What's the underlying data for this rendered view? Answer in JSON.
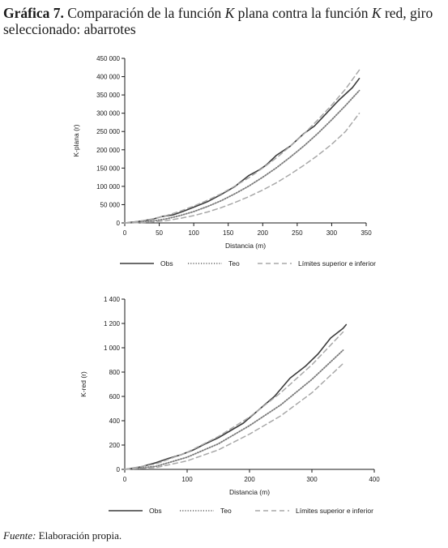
{
  "heading": {
    "label": "Gráfica 7.",
    "text_a": " Comparación de la función ",
    "k1": "K",
    "text_b": " plana contra la función ",
    "k2": "K",
    "text_c": " red, giro seleccionado: abarrotes"
  },
  "legend": {
    "obs": "Obs",
    "teo": "Teo",
    "limits": "Límites superior e inferior"
  },
  "source": {
    "label": "Fuente:",
    "text": " Elaboración propia."
  },
  "colors": {
    "obs": "#3c3c3c",
    "teo": "#7a7a7a",
    "limits": "#a8a8a8",
    "axis": "#1a1a1a"
  },
  "chart_data": [
    {
      "type": "line",
      "xlabel": "Distancia (m)",
      "ylabel": "K-plana (r)",
      "xlim": [
        0,
        350
      ],
      "ylim": [
        0,
        450000
      ],
      "xticks": [
        0,
        50,
        100,
        150,
        200,
        250,
        300,
        350
      ],
      "yticks": [
        0,
        50000,
        100000,
        150000,
        200000,
        250000,
        300000,
        350000,
        400000,
        450000
      ],
      "ytick_labels": [
        "0",
        "50 000",
        "100 000",
        "150 000",
        "200 000",
        "250 000",
        "300 000",
        "350 000",
        "400 000",
        "450 000"
      ],
      "grid": false,
      "legend_position": "bottom",
      "series": [
        {
          "name": "Obs",
          "style": "solid",
          "x": [
            0,
            20,
            40,
            55,
            70,
            85,
            100,
            120,
            140,
            160,
            180,
            195,
            205,
            220,
            240,
            260,
            275,
            290,
            310,
            330,
            340
          ],
          "y": [
            0,
            4000,
            10000,
            18000,
            22000,
            32000,
            43000,
            58000,
            78000,
            100000,
            130000,
            145000,
            158000,
            185000,
            210000,
            245000,
            265000,
            295000,
            335000,
            370000,
            395000
          ]
        },
        {
          "name": "Teo",
          "style": "dotted",
          "x": [
            0,
            20,
            40,
            60,
            80,
            100,
            120,
            140,
            160,
            180,
            200,
            220,
            240,
            260,
            280,
            300,
            320,
            340
          ],
          "y": [
            0,
            1200,
            5000,
            11000,
            20000,
            31000,
            45000,
            61000,
            80000,
            101000,
            125000,
            151000,
            180000,
            211000,
            245000,
            282000,
            321000,
            362000
          ]
        },
        {
          "name": "Superior",
          "style": "dashed",
          "x": [
            0,
            20,
            40,
            60,
            80,
            100,
            120,
            140,
            160,
            180,
            200,
            220,
            240,
            260,
            280,
            300,
            320,
            340
          ],
          "y": [
            0,
            4000,
            11000,
            20000,
            32000,
            46000,
            62000,
            80000,
            101000,
            124000,
            150000,
            178000,
            210000,
            244000,
            282000,
            322000,
            366000,
            418000
          ]
        },
        {
          "name": "Inferior",
          "style": "dashed",
          "x": [
            0,
            20,
            40,
            60,
            80,
            100,
            120,
            140,
            160,
            180,
            200,
            220,
            240,
            260,
            280,
            300,
            320,
            340
          ],
          "y": [
            0,
            500,
            2500,
            6500,
            12500,
            20000,
            30000,
            42000,
            56000,
            72000,
            90000,
            110000,
            133000,
            158000,
            185000,
            215000,
            250000,
            300000
          ]
        }
      ]
    },
    {
      "type": "line",
      "xlabel": "Distancia (m)",
      "ylabel": "K-red (r)",
      "xlim": [
        0,
        400
      ],
      "ylim": [
        0,
        1400
      ],
      "xticks": [
        0,
        100,
        200,
        300,
        400
      ],
      "yticks": [
        0,
        200,
        400,
        600,
        800,
        1000,
        1200,
        1400
      ],
      "ytick_labels": [
        "0",
        "200",
        "400",
        "600",
        "800",
        "1 000",
        "1 200",
        "1 400"
      ],
      "grid": false,
      "legend_position": "bottom",
      "series": [
        {
          "name": "Obs",
          "style": "solid",
          "x": [
            0,
            25,
            50,
            70,
            90,
            110,
            125,
            150,
            170,
            190,
            215,
            240,
            265,
            290,
            310,
            330,
            350,
            355
          ],
          "y": [
            0,
            20,
            55,
            90,
            120,
            160,
            200,
            260,
            320,
            380,
            490,
            600,
            750,
            850,
            950,
            1080,
            1160,
            1190
          ]
        },
        {
          "name": "Teo",
          "style": "dotted",
          "x": [
            0,
            50,
            100,
            150,
            200,
            250,
            300,
            350
          ],
          "y": [
            0,
            25,
            100,
            210,
            360,
            530,
            740,
            980
          ]
        },
        {
          "name": "Superior",
          "style": "dashed",
          "x": [
            0,
            50,
            100,
            150,
            200,
            250,
            300,
            350
          ],
          "y": [
            0,
            45,
            140,
            270,
            430,
            630,
            860,
            1130
          ]
        },
        {
          "name": "Inferior",
          "style": "dashed",
          "x": [
            0,
            50,
            100,
            150,
            200,
            250,
            300,
            350
          ],
          "y": [
            0,
            15,
            70,
            160,
            290,
            440,
            630,
            870
          ]
        }
      ]
    }
  ]
}
